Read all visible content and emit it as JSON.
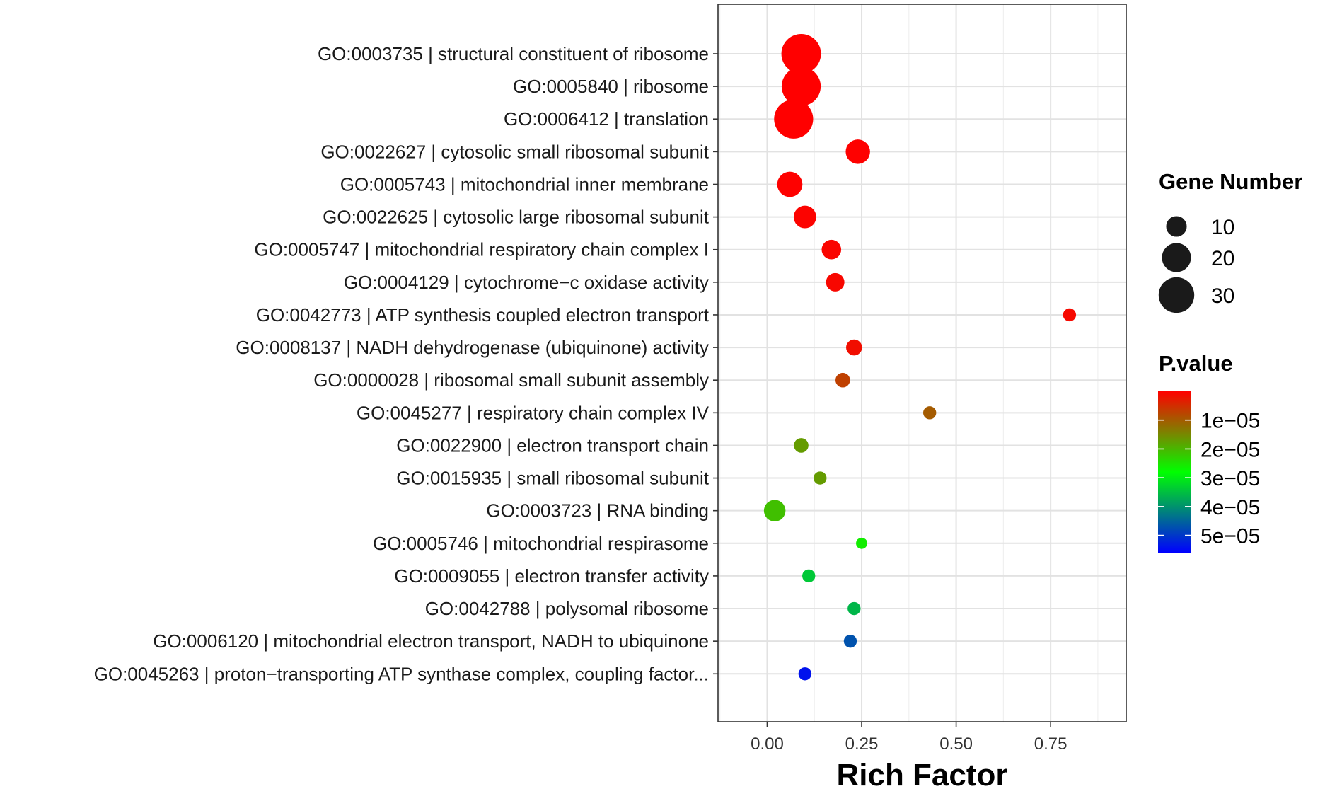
{
  "chart_data": {
    "type": "scatter",
    "xlabel": "Rich Factor",
    "xlim": [
      -0.13,
      0.95
    ],
    "x_ticks": [
      0.0,
      0.25,
      0.5,
      0.75
    ],
    "x_tick_labels": [
      "0.00",
      "0.25",
      "0.50",
      "0.75"
    ],
    "grid": true,
    "legend_placement": "right",
    "size_legend": {
      "title": "Gene Number",
      "values": [
        10,
        20,
        30
      ],
      "labels": [
        "10",
        "20",
        "30"
      ]
    },
    "color_legend": {
      "title": "P.value",
      "range": [
        0,
        5.6e-05
      ],
      "ticks": [
        1e-05,
        2e-05,
        3e-05,
        4e-05,
        5e-05
      ],
      "tick_labels": [
        "1e−05",
        "2e−05",
        "3e−05",
        "4e−05",
        "5e−05"
      ],
      "colors": [
        "#ff0000",
        "#00ff00",
        "#0000ff"
      ]
    },
    "points": [
      {
        "term": "GO:0003735 | structural constituent of ribosome",
        "rich_factor": 0.09,
        "gene_number": 37,
        "p_value": 1e-09
      },
      {
        "term": "GO:0005840 | ribosome",
        "rich_factor": 0.09,
        "gene_number": 36,
        "p_value": 1e-09
      },
      {
        "term": "GO:0006412 | translation",
        "rich_factor": 0.07,
        "gene_number": 36,
        "p_value": 2e-09
      },
      {
        "term": "GO:0022627 | cytosolic small ribosomal subunit",
        "rich_factor": 0.24,
        "gene_number": 14,
        "p_value": 1e-07
      },
      {
        "term": "GO:0005743 | mitochondrial inner membrane",
        "rich_factor": 0.06,
        "gene_number": 15,
        "p_value": 1e-07
      },
      {
        "term": "GO:0022625 | cytosolic large ribosomal subunit",
        "rich_factor": 0.1,
        "gene_number": 12,
        "p_value": 3e-07
      },
      {
        "term": "GO:0005747 | mitochondrial respiratory chain complex I",
        "rich_factor": 0.17,
        "gene_number": 9,
        "p_value": 6e-07
      },
      {
        "term": "GO:0004129 | cytochrome−c oxidase activity",
        "rich_factor": 0.18,
        "gene_number": 8,
        "p_value": 8e-07
      },
      {
        "term": "GO:0042773 | ATP synthesis coupled electron transport",
        "rich_factor": 0.8,
        "gene_number": 4,
        "p_value": 1e-06
      },
      {
        "term": "GO:0008137 | NADH dehydrogenase (ubiquinone) activity",
        "rich_factor": 0.23,
        "gene_number": 6,
        "p_value": 1.5e-06
      },
      {
        "term": "GO:0000028 | ribosomal small subunit assembly",
        "rich_factor": 0.2,
        "gene_number": 5,
        "p_value": 7e-06
      },
      {
        "term": "GO:0045277 | respiratory chain complex IV",
        "rich_factor": 0.43,
        "gene_number": 4,
        "p_value": 1e-05
      },
      {
        "term": "GO:0022900 | electron transport chain",
        "rich_factor": 0.09,
        "gene_number": 5,
        "p_value": 1.7e-05
      },
      {
        "term": "GO:0015935 | small ribosomal subunit",
        "rich_factor": 0.14,
        "gene_number": 4,
        "p_value": 1.7e-05
      },
      {
        "term": "GO:0003723 | RNA binding",
        "rich_factor": 0.02,
        "gene_number": 11,
        "p_value": 2.1e-05
      },
      {
        "term": "GO:0005746 | mitochondrial respirasome",
        "rich_factor": 0.25,
        "gene_number": 3,
        "p_value": 2.6e-05
      },
      {
        "term": "GO:0009055 | electron transfer activity",
        "rich_factor": 0.11,
        "gene_number": 4,
        "p_value": 3.4e-05
      },
      {
        "term": "GO:0042788 | polysomal ribosome",
        "rich_factor": 0.23,
        "gene_number": 4,
        "p_value": 3.6e-05
      },
      {
        "term": "GO:0006120 | mitochondrial electron transport, NADH to ubiquinone",
        "rich_factor": 0.22,
        "gene_number": 4,
        "p_value": 4.7e-05
      },
      {
        "term": "GO:0045263 | proton−transporting ATP synthase complex, coupling factor...",
        "rich_factor": 0.1,
        "gene_number": 4,
        "p_value": 5.4e-05
      }
    ]
  }
}
